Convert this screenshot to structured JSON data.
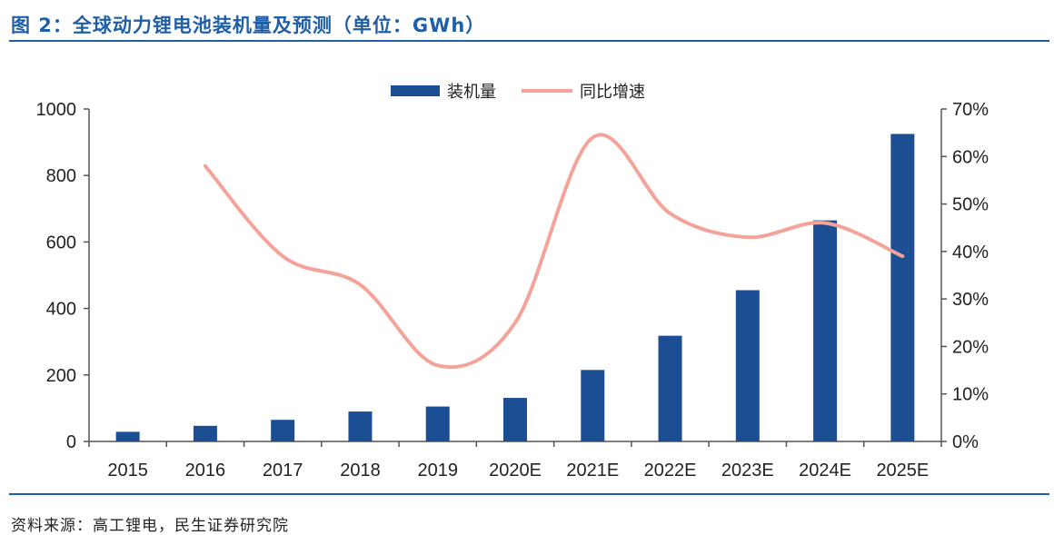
{
  "figure": {
    "title": "图 2：全球动力锂电池装机量及预测（单位：GWh）",
    "source": "资料来源：高工锂电，民生证券研究院"
  },
  "colors": {
    "title_blue": "#1f5fa8",
    "bar": "#1c4e94",
    "line": "#f4a39a",
    "axis": "#555555",
    "text": "#222222"
  },
  "chart_data": {
    "type": "bar",
    "categories": [
      "2015",
      "2016",
      "2017",
      "2018",
      "2019",
      "2020E",
      "2021E",
      "2022E",
      "2023E",
      "2024E",
      "2025E"
    ],
    "series": [
      {
        "name": "装机量",
        "type": "bar",
        "axis": "left",
        "values": [
          29,
          47,
          65,
          90,
          105,
          131,
          215,
          318,
          455,
          665,
          925
        ]
      },
      {
        "name": "同比增速",
        "type": "line",
        "axis": "right",
        "values": [
          null,
          0.58,
          0.39,
          0.33,
          0.16,
          0.25,
          0.64,
          0.48,
          0.43,
          0.46,
          0.39
        ]
      }
    ],
    "y_left": {
      "min": 0,
      "max": 1000,
      "ticks": [
        0,
        200,
        400,
        600,
        800,
        1000
      ],
      "tick_labels": [
        "0",
        "200",
        "400",
        "600",
        "800",
        "1000"
      ]
    },
    "y_right": {
      "min": 0,
      "max": 0.7,
      "ticks": [
        0,
        0.1,
        0.2,
        0.3,
        0.4,
        0.5,
        0.6,
        0.7
      ],
      "tick_labels": [
        "0%",
        "10%",
        "20%",
        "30%",
        "40%",
        "50%",
        "60%",
        "70%"
      ]
    },
    "legend_position": "top-center",
    "grid": false
  }
}
